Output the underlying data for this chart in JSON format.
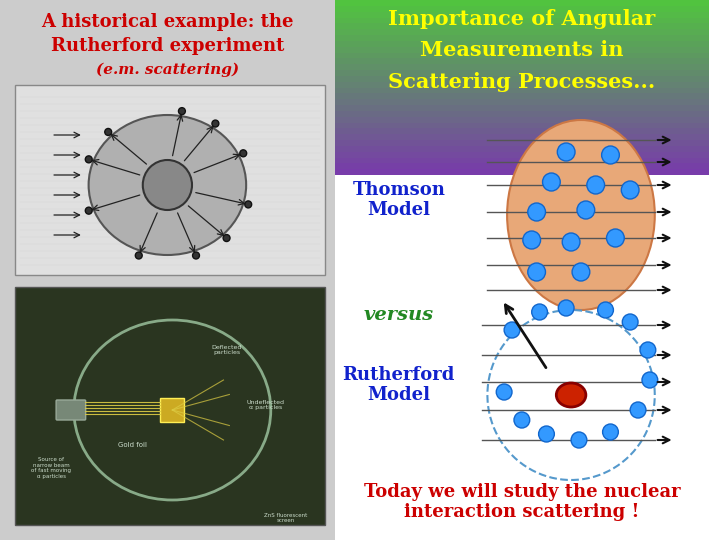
{
  "background_color": "#ffffff",
  "title_left_line1": "A historical example: the",
  "title_left_line2": "Rutherford experiment",
  "title_left_line3": "(e.m. scattering)",
  "title_right_line1": "Importance of Angular",
  "title_right_line2": "Measurements in",
  "title_right_line3": "Scattering Processes...",
  "label_thomson": "Thomson\nModel",
  "label_versus": "versus",
  "label_rutherford": "Rutherford\nModel",
  "label_bottom": "Today we will study the nuclear\ninteraction scattering !",
  "header_gradient_top": "#7744aa",
  "header_gradient_mid": "#55aa44",
  "header_gradient_bot": "#33cc33",
  "thomson_ellipse_color": "#e8a878",
  "electron_color": "#3399ff",
  "electron_edge": "#1166cc",
  "nucleus_color": "#cc2200",
  "nucleus_edge": "#880000",
  "arrow_color": "#111111",
  "label_color_blue": "#1122cc",
  "label_color_green": "#228822",
  "label_bottom_color": "#cc0000",
  "left_title_color": "#cc0000",
  "right_title_color": "#ffff00",
  "left_bg": "#cccccc",
  "right_bg": "#ffffff",
  "scatter_img_bg": "#e0e0e0",
  "foil_img_bg": "#2a3520"
}
